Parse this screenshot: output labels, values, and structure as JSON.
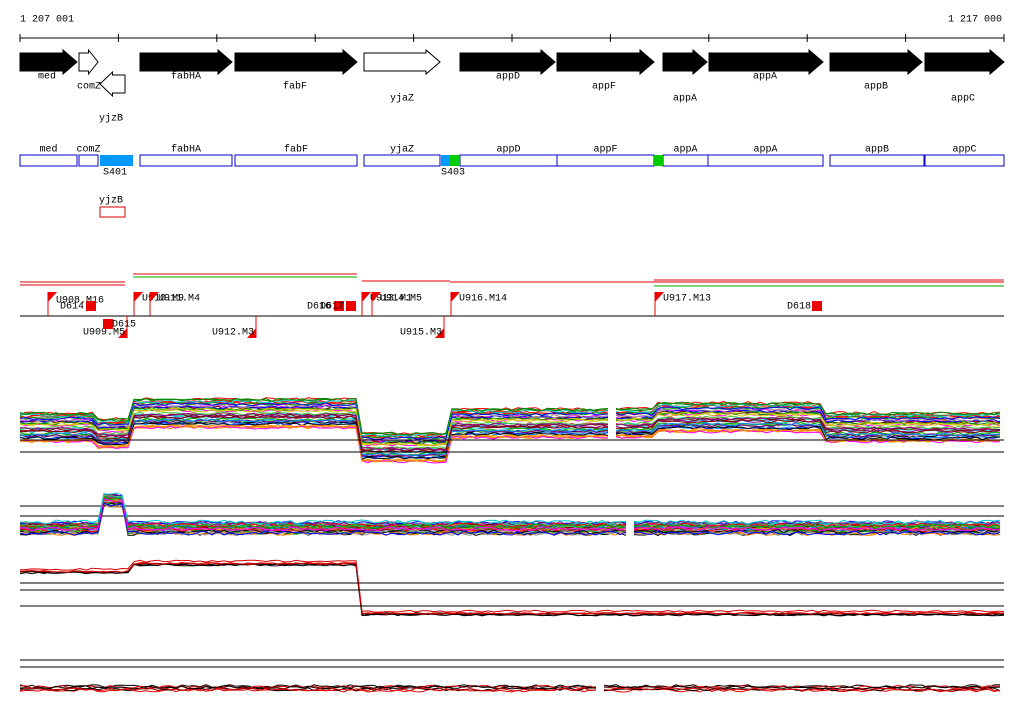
{
  "ruler": {
    "start": "1 207 001",
    "end": "1 217 000"
  },
  "genes": [
    "med",
    "comZ",
    "yjzB",
    "fabHA",
    "fabF",
    "yjaZ",
    "appD",
    "appF",
    "appA",
    "appA",
    "appB",
    "appC"
  ],
  "segments": {
    "labels": [
      "med",
      "comZ",
      "fabHA",
      "fabF",
      "yjaZ",
      "appD",
      "appF",
      "appA",
      "appA",
      "appB",
      "appC"
    ],
    "markers": [
      "S401",
      "S403"
    ],
    "extra": "yjzB"
  },
  "upshifts": [
    "U908.M16",
    "U910.M9",
    "U911.M4",
    "U913.M1",
    "U914.M5",
    "U916.M14",
    "U917.M13",
    "U909.M5",
    "U912.M3",
    "U915.M3"
  ],
  "downshifts": [
    "D614",
    "D615",
    "D616",
    "D617",
    "D618"
  ]
}
